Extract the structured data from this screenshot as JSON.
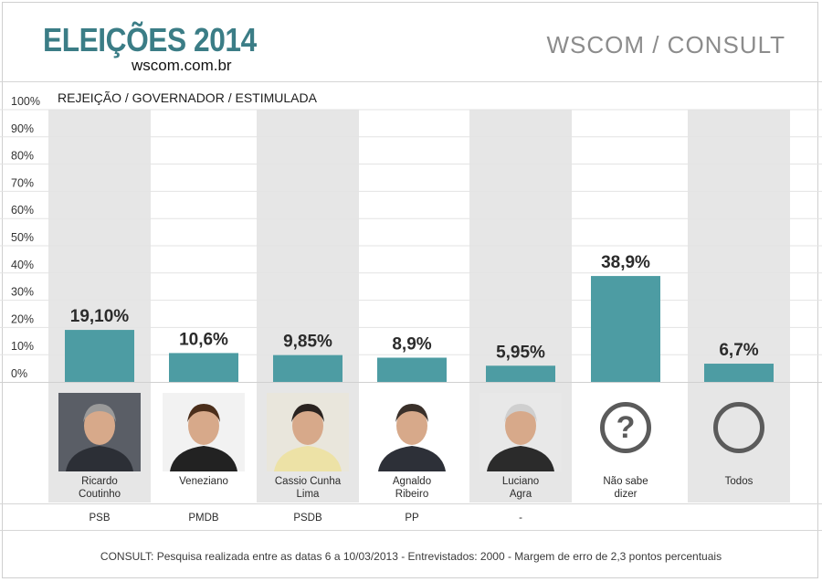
{
  "header": {
    "title": "ELEIÇÕES 2014",
    "url": "wscom.com.br",
    "publisher": "WSCOM / CONSULT"
  },
  "chart_data": {
    "type": "bar",
    "title": "REJEIÇÃO / GOVERNADOR / ESTIMULADA",
    "y_tick_labels": [
      "100%",
      "90%",
      "80%",
      "70%",
      "60%",
      "50%",
      "40%",
      "30%",
      "20%",
      "10%",
      "0%"
    ],
    "ylim": [
      0,
      100
    ],
    "grid": true,
    "bar_color": "#4d9ca3",
    "categories": [
      {
        "name": "Ricardo\nCoutinho",
        "party": "PSB",
        "value": 19.1,
        "label": "19,10%",
        "photo": "candidate-photo"
      },
      {
        "name": "Veneziano",
        "party": "PMDB",
        "value": 10.6,
        "label": "10,6%",
        "photo": "candidate-photo"
      },
      {
        "name": "Cassio Cunha\nLima",
        "party": "PSDB",
        "value": 9.85,
        "label": "9,85%",
        "photo": "candidate-photo"
      },
      {
        "name": "Agnaldo\nRibeiro",
        "party": "PP",
        "value": 8.9,
        "label": "8,9%",
        "photo": "candidate-photo"
      },
      {
        "name": "Luciano\nAgra",
        "party": "-",
        "value": 5.95,
        "label": "5,95%",
        "photo": "candidate-photo"
      },
      {
        "name": "Não sabe\ndizer",
        "party": "",
        "value": 38.9,
        "label": "38,9%",
        "icon": "question-mark-icon"
      },
      {
        "name": "Todos",
        "party": "",
        "value": 6.7,
        "label": "6,7%",
        "icon": "circle-icon"
      }
    ]
  },
  "footer": {
    "note": "CONSULT: Pesquisa realizada entre as datas 6 a 10/03/2013 - Entrevistados: 2000 - Margem de erro de 2,3 pontos percentuais"
  }
}
